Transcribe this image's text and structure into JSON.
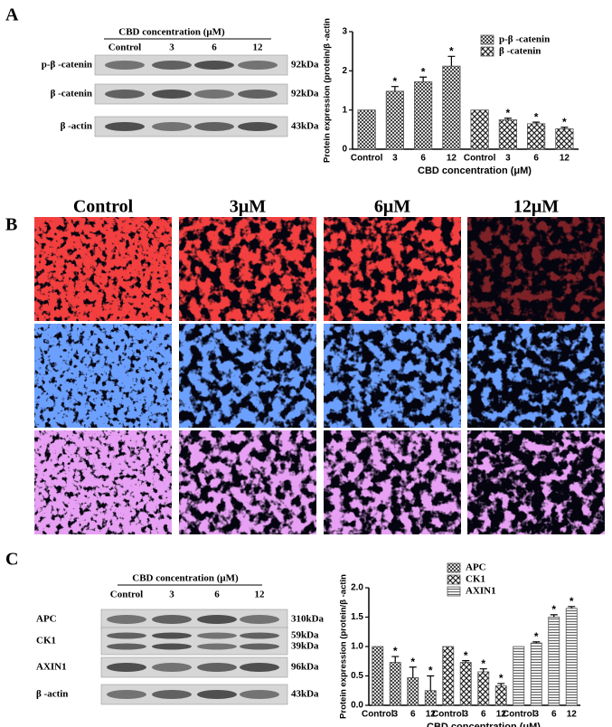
{
  "panel_labels": [
    "A",
    "B",
    "C"
  ],
  "blot_a": {
    "header": "CBD concentration (μM)",
    "lanes": [
      "Control",
      "3",
      "6",
      "12"
    ],
    "rows": [
      {
        "label": "p-β -catenin",
        "sizes": [
          "92kDa"
        ]
      },
      {
        "label": "β -catenin",
        "sizes": [
          "92kDa"
        ]
      },
      {
        "label": "β -actin",
        "sizes": [
          "43kDa"
        ]
      }
    ]
  },
  "images": {
    "columns": [
      "Control",
      "3μM",
      "6μM",
      "12μM"
    ]
  },
  "blot_c": {
    "header": "CBD concentration (μM)",
    "lanes": [
      "Control",
      "3",
      "6",
      "12"
    ],
    "rows": [
      {
        "label": "APC",
        "sizes": [
          "310kDa"
        ]
      },
      {
        "label": "CK1",
        "sizes": [
          "59kDa",
          "39kDa"
        ]
      },
      {
        "label": "AXIN1",
        "sizes": [
          "96kDa"
        ]
      },
      {
        "label": "β -actin",
        "sizes": [
          "43kDa"
        ]
      }
    ]
  },
  "chart_data": [
    {
      "type": "bar",
      "ylabel": "Protein expression (protein/β -actin",
      "xlabel": "CBD concentration (μM)",
      "categories": [
        "Control",
        "3",
        "6",
        "12",
        "Control",
        "3",
        "6",
        "12"
      ],
      "series": [
        {
          "name": "p-β -catenin",
          "color": "#555555",
          "values": [
            1,
            1.48,
            1.72,
            2.12,
            null,
            null,
            null,
            null
          ],
          "errors": [
            0,
            0.12,
            0.12,
            0.25,
            null,
            null,
            null,
            null
          ],
          "significance": [
            null,
            "*",
            "*",
            "*",
            null,
            null,
            null,
            null
          ]
        },
        {
          "name": "β -catenin",
          "color": "#555555",
          "values": [
            null,
            null,
            null,
            null,
            1,
            0.75,
            0.65,
            0.52
          ],
          "errors": [
            null,
            null,
            null,
            null,
            0,
            0.04,
            0.04,
            0.04
          ],
          "significance": [
            null,
            null,
            null,
            null,
            null,
            "*",
            "*",
            "*"
          ]
        }
      ],
      "ylim": [
        0,
        3
      ],
      "yticks": [
        0,
        1,
        2,
        3
      ],
      "legend": "upper right"
    },
    {
      "type": "bar",
      "ylabel": "Protein expression (protein/β -actin",
      "xlabel": "CBD concentration (μM)",
      "categories": [
        "Control",
        "3",
        "6",
        "12",
        "Control",
        "3",
        "6",
        "12",
        "Control",
        "3",
        "6",
        "12"
      ],
      "series": [
        {
          "name": "APC",
          "color": "#555555",
          "values": [
            1,
            0.73,
            0.47,
            0.25,
            null,
            null,
            null,
            null,
            null,
            null,
            null,
            null
          ],
          "errors": [
            0,
            0.1,
            0.18,
            0.25,
            null,
            null,
            null,
            null,
            null,
            null,
            null,
            null
          ],
          "significance": [
            null,
            "*",
            "*",
            "*",
            null,
            null,
            null,
            null,
            null,
            null,
            null,
            null
          ]
        },
        {
          "name": "CK1",
          "color": "#555555",
          "values": [
            null,
            null,
            null,
            null,
            1,
            0.73,
            0.57,
            0.33,
            null,
            null,
            null,
            null
          ],
          "errors": [
            null,
            null,
            null,
            null,
            0,
            0.03,
            0.05,
            0.04,
            null,
            null,
            null,
            null
          ],
          "significance": [
            null,
            null,
            null,
            null,
            null,
            "*",
            "*",
            "*",
            null,
            null,
            null,
            null
          ]
        },
        {
          "name": "AXIN1",
          "color": "#555555",
          "values": [
            null,
            null,
            null,
            null,
            null,
            null,
            null,
            null,
            1,
            1.06,
            1.5,
            1.65
          ],
          "errors": [
            null,
            null,
            null,
            null,
            null,
            null,
            null,
            null,
            0,
            0.02,
            0.04,
            0.03
          ],
          "significance": [
            null,
            null,
            null,
            null,
            null,
            null,
            null,
            null,
            null,
            "*",
            "*",
            "*"
          ]
        }
      ],
      "ylim": [
        0,
        2
      ],
      "yticks": [
        {
          "value": 0,
          "label": "0.0"
        },
        {
          "value": 0.5,
          "label": "0.5"
        },
        {
          "value": 1,
          "label": "1.0"
        },
        {
          "value": 1.5,
          "label": "1.5"
        },
        {
          "value": 2,
          "label": "2.0"
        }
      ],
      "legend": "upper center"
    }
  ]
}
